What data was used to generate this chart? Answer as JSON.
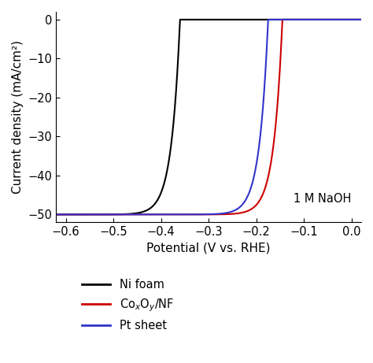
{
  "title": "",
  "xlabel": "Potential (V vs. RHE)",
  "ylabel": "Current density (mA/cm²)",
  "xlim": [
    -0.62,
    0.02
  ],
  "ylim": [
    -52,
    2
  ],
  "annotation": "1 M NaOH",
  "xticks": [
    -0.6,
    -0.5,
    -0.4,
    -0.3,
    -0.2,
    -0.1,
    0.0
  ],
  "yticks": [
    0,
    -10,
    -20,
    -30,
    -40,
    -50
  ],
  "curves": [
    {
      "label": "Ni foam",
      "color": "#000000",
      "onset": -0.36,
      "k": 55.0,
      "j_lim": -50.0
    },
    {
      "label": "Co$_x$O$_y$/NF",
      "color": "#cc0000",
      "onset": -0.145,
      "k": 55.0,
      "j_lim": -50.0
    },
    {
      "label": "Pt sheet",
      "color": "#3333cc",
      "onset": -0.175,
      "k": 55.0,
      "j_lim": -50.0
    }
  ],
  "background_color": "#ffffff",
  "figsize": [
    4.74,
    4.61
  ],
  "dpi": 100
}
